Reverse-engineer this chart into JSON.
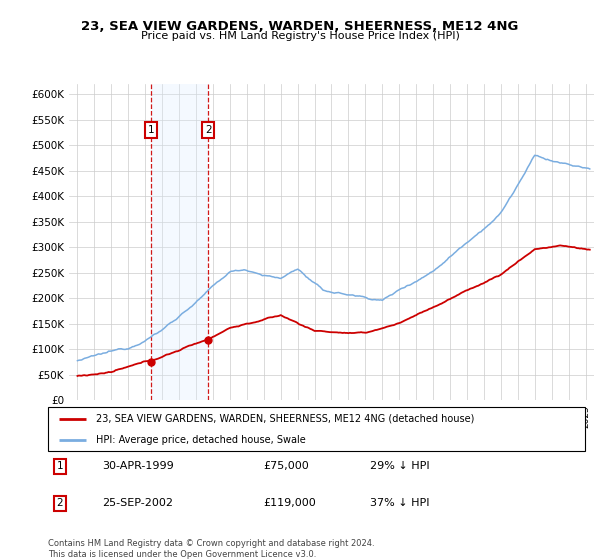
{
  "title": "23, SEA VIEW GARDENS, WARDEN, SHEERNESS, ME12 4NG",
  "subtitle": "Price paid vs. HM Land Registry's House Price Index (HPI)",
  "ylim": [
    0,
    620000
  ],
  "yticks": [
    0,
    50000,
    100000,
    150000,
    200000,
    250000,
    300000,
    350000,
    400000,
    450000,
    500000,
    550000,
    600000
  ],
  "xlim_start": 1994.5,
  "xlim_end": 2025.5,
  "purchase1_date": 1999.33,
  "purchase1_price": 75000,
  "purchase2_date": 2002.73,
  "purchase2_price": 119000,
  "line_color_red": "#cc0000",
  "line_color_blue": "#7aade0",
  "shade_color": "#ddeeff",
  "grid_color": "#cccccc",
  "legend_line1": "23, SEA VIEW GARDENS, WARDEN, SHEERNESS, ME12 4NG (detached house)",
  "legend_line2": "HPI: Average price, detached house, Swale",
  "table_row1_num": "1",
  "table_row1_date": "30-APR-1999",
  "table_row1_price": "£75,000",
  "table_row1_hpi": "29% ↓ HPI",
  "table_row2_num": "2",
  "table_row2_date": "25-SEP-2002",
  "table_row2_price": "£119,000",
  "table_row2_hpi": "37% ↓ HPI",
  "footer": "Contains HM Land Registry data © Crown copyright and database right 2024.\nThis data is licensed under the Open Government Licence v3.0."
}
